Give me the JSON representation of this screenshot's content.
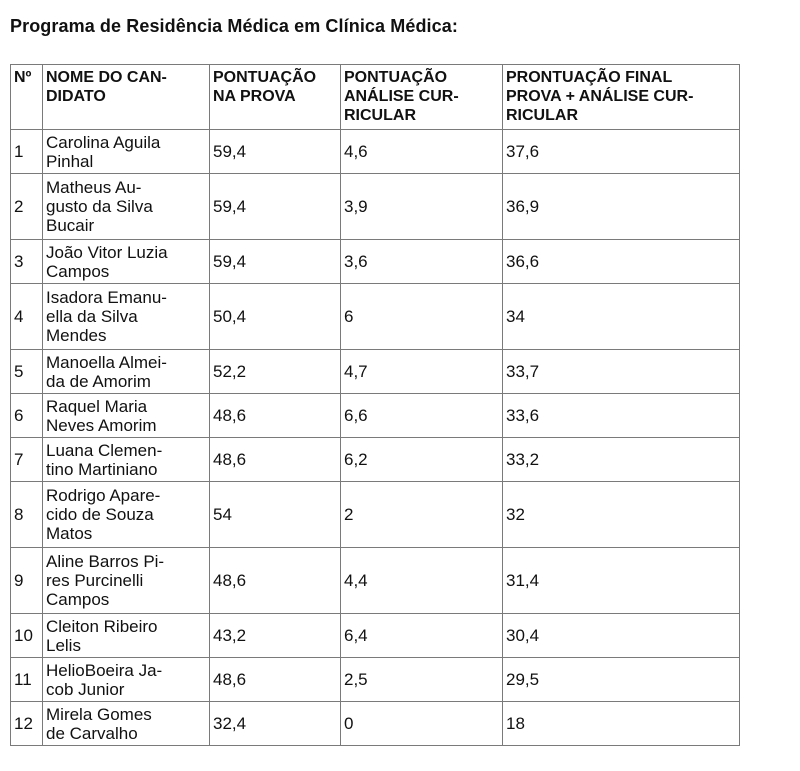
{
  "document": {
    "title": "Programa de Residência Médica em Clínica Médica:"
  },
  "table": {
    "headers": {
      "num": "Nº",
      "name": "NOME DO CAN-\nDIDATO",
      "exam": "PONTUAÇÃO\nNA PROVA",
      "cv": "PONTUAÇÃO\nANÁLISE CUR-\nRICULAR",
      "final": "PRONTUAÇÃO FINAL\nPROVA + ANÁLISE CUR-\nRICULAR"
    },
    "rows": [
      {
        "num": "1",
        "name": "Carolina Aguila\nPinhal",
        "exam": "59,4",
        "cv": "4,6",
        "final": "37,6"
      },
      {
        "num": "2",
        "name": "Matheus Au-\ngusto da Silva\nBucair",
        "exam": "59,4",
        "cv": "3,9",
        "final": "36,9"
      },
      {
        "num": "3",
        "name": "João Vitor Luzia\nCampos",
        "exam": "59,4",
        "cv": "3,6",
        "final": "36,6"
      },
      {
        "num": "4",
        "name": "Isadora Emanu-\nella da Silva\nMendes",
        "exam": "50,4",
        "cv": "6",
        "final": "34"
      },
      {
        "num": "5",
        "name": "Manoella Almei-\nda de Amorim",
        "exam": "52,2",
        "cv": "4,7",
        "final": "33,7"
      },
      {
        "num": "6",
        "name": "Raquel Maria\nNeves Amorim",
        "exam": "48,6",
        "cv": "6,6",
        "final": "33,6"
      },
      {
        "num": "7",
        "name": "Luana Clemen-\ntino Martiniano",
        "exam": "48,6",
        "cv": "6,2",
        "final": "33,2"
      },
      {
        "num": "8",
        "name": "Rodrigo Apare-\ncido de Souza\nMatos",
        "exam": "54",
        "cv": "2",
        "final": "32"
      },
      {
        "num": "9",
        "name": "Aline Barros Pi-\nres Purcinelli\nCampos",
        "exam": "48,6",
        "cv": "4,4",
        "final": "31,4"
      },
      {
        "num": "10",
        "name": "Cleiton Ribeiro\nLelis",
        "exam": "43,2",
        "cv": "6,4",
        "final": "30,4"
      },
      {
        "num": "11",
        "name": "HelioBoeira Ja-\ncob Junior",
        "exam": "48,6",
        "cv": "2,5",
        "final": "29,5"
      },
      {
        "num": "12",
        "name": "Mirela Gomes\nde Carvalho",
        "exam": "32,4",
        "cv": "0",
        "final": "18"
      }
    ]
  }
}
